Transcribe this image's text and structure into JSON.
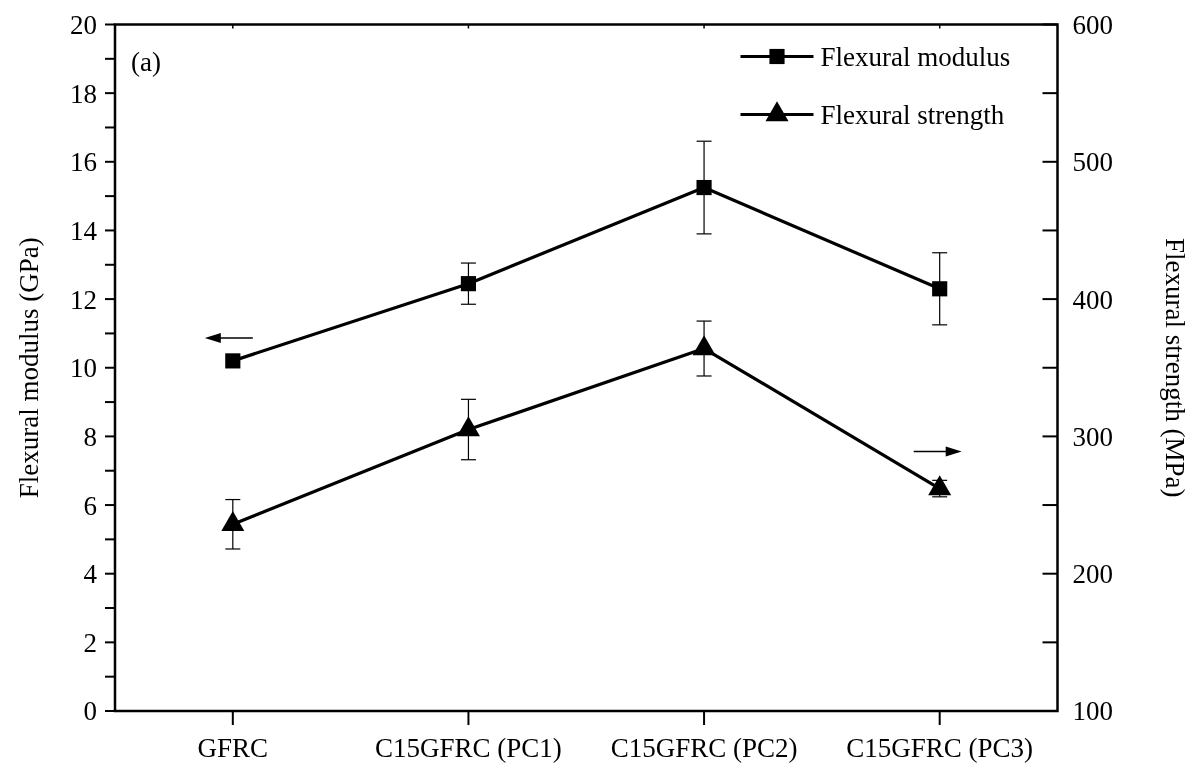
{
  "chart_data": {
    "type": "line",
    "annotations": [
      "(a)"
    ],
    "ylabel": "Flexural modulus (GPa)",
    "y2label": "Flexural strength (MPa)",
    "categories": [
      "GFRC",
      "C15GFRC (PC1)",
      "C15GFRC (PC2)",
      "C15GFRC (PC3)"
    ],
    "ylim": [
      0,
      20
    ],
    "yticks": [
      0,
      {
        "value": 1,
        "label": null
      },
      2,
      {
        "value": 3,
        "label": null
      },
      4,
      {
        "value": 5,
        "label": null
      },
      6,
      {
        "value": 7,
        "label": null
      },
      8,
      {
        "value": 9,
        "label": null
      },
      10,
      {
        "value": 11,
        "label": null
      },
      12,
      {
        "value": 13,
        "label": null
      },
      14,
      {
        "value": 15,
        "label": null
      },
      16,
      {
        "value": 17,
        "label": null
      },
      18,
      {
        "value": 19,
        "label": null
      },
      20
    ],
    "y2lim": [
      100,
      600
    ],
    "y2ticks": [
      100,
      {
        "value": 150,
        "label": null
      },
      200,
      {
        "value": 250,
        "label": null
      },
      300,
      {
        "value": 350,
        "label": null
      },
      400,
      {
        "value": 450,
        "label": null
      },
      500,
      {
        "value": 550,
        "label": null
      },
      600
    ],
    "legend": "top right",
    "series": [
      {
        "name": "Flexural modulus",
        "color": "#000000",
        "marker": "square",
        "values": [
          10.2,
          12.45,
          15.25,
          12.3
        ],
        "errors": [
          null,
          0.6,
          1.35,
          1.05
        ]
      },
      {
        "name": "Flexural strength",
        "color": "#000000",
        "marker": "triangle",
        "axis": "y2",
        "values": [
          236,
          305,
          364,
          262
        ],
        "errors": [
          18,
          22,
          20,
          6
        ]
      }
    ]
  }
}
